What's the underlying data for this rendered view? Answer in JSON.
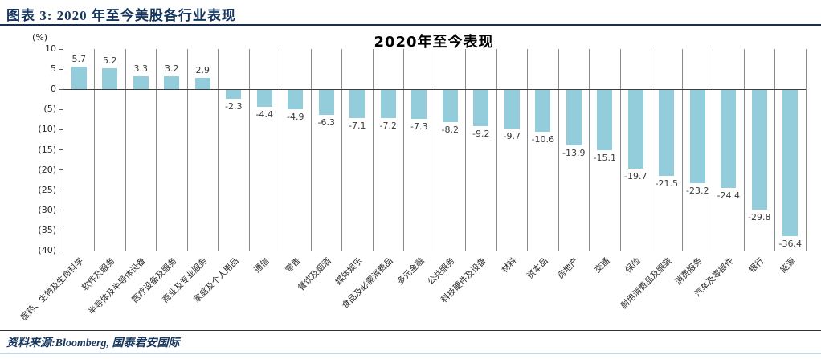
{
  "header": {
    "title": "图表 3: 2020 年至今美股各行业表现"
  },
  "chart_data": {
    "type": "bar",
    "title": "2020年至今表现",
    "unit_label": "(%)",
    "bar_color": "#93CDDC",
    "ylim": [
      -40,
      10
    ],
    "y_tick_values": [
      10,
      5,
      0,
      -5,
      -10,
      -15,
      -20,
      -25,
      -30,
      -35,
      -40
    ],
    "y_tick_labels": [
      "10",
      "5",
      "0",
      "(5)",
      "(10)",
      "(15)",
      "(20)",
      "(25)",
      "(30)",
      "(35)",
      "(40)"
    ],
    "grid": "vertical-category-separators",
    "legend": "none",
    "categories": [
      "医药、生物及生命科学",
      "软件及服务",
      "半导体及半导体设备",
      "医疗设备及服务",
      "商业及专业服务",
      "家庭及个人用品",
      "通信",
      "零售",
      "餐饮及烟酒",
      "媒体娱乐",
      "食品及必需消费品",
      "多元金融",
      "公共服务",
      "科技硬件及设备",
      "材料",
      "资本品",
      "房地产",
      "交通",
      "保险",
      "耐用消费品及服装",
      "消费服务",
      "汽车及零部件",
      "银行",
      "能源"
    ],
    "values": [
      5.7,
      5.2,
      3.3,
      3.2,
      2.9,
      -2.3,
      -4.4,
      -4.9,
      -6.3,
      -7.1,
      -7.2,
      -7.3,
      -8.2,
      -9.2,
      -9.7,
      -10.6,
      -13.9,
      -15.1,
      -19.7,
      -21.5,
      -23.2,
      -24.4,
      -29.8,
      -36.4
    ]
  },
  "footer": {
    "source": "资料来源:Bloomberg, 国泰君安国际"
  }
}
